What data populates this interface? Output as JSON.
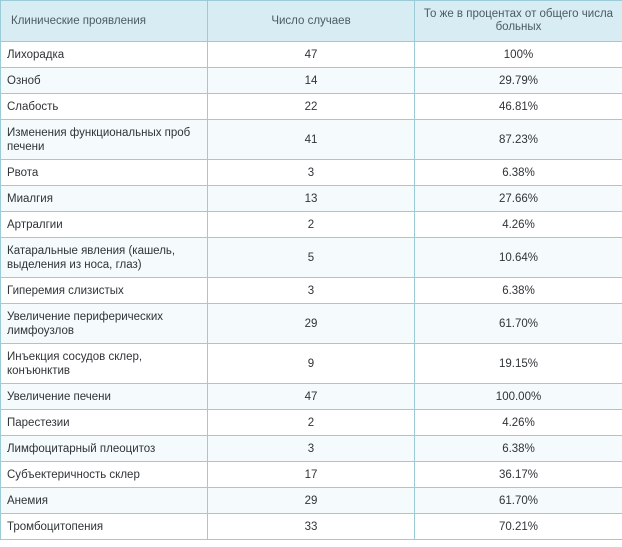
{
  "table": {
    "headers": [
      "Клинические проявления",
      "Число случаев",
      "То же в процентах от общего числа больных"
    ],
    "rows": [
      {
        "name": "Лихорадка",
        "count": "47",
        "percent": "100%"
      },
      {
        "name": "Озноб",
        "count": "14",
        "percent": "29.79%"
      },
      {
        "name": "Слабость",
        "count": "22",
        "percent": "46.81%"
      },
      {
        "name": "Изменения функциональных проб печени",
        "count": "41",
        "percent": "87.23%"
      },
      {
        "name": "Рвота",
        "count": "3",
        "percent": "6.38%"
      },
      {
        "name": "Миалгия",
        "count": "13",
        "percent": "27.66%"
      },
      {
        "name": "Артралгии",
        "count": "2",
        "percent": "4.26%"
      },
      {
        "name": "Катаральные явления (кашель, выделения из носа, глаз)",
        "count": "5",
        "percent": "10.64%"
      },
      {
        "name": "Гиперемия слизистых",
        "count": "3",
        "percent": "6.38%"
      },
      {
        "name": "Увеличение периферических лимфоузлов",
        "count": "29",
        "percent": "61.70%"
      },
      {
        "name": "Инъекция сосудов склер, конъюнктив",
        "count": "9",
        "percent": "19.15%"
      },
      {
        "name": "Увеличение печени",
        "count": "47",
        "percent": "100.00%"
      },
      {
        "name": "Парестезии",
        "count": "2",
        "percent": "4.26%"
      },
      {
        "name": "Лимфоцитарный плеоцитоз",
        "count": "3",
        "percent": "6.38%"
      },
      {
        "name": "Субъектеричность склер",
        "count": "17",
        "percent": "36.17%"
      },
      {
        "name": "Анемия",
        "count": "29",
        "percent": "61.70%"
      },
      {
        "name": "Тромбоцитопения",
        "count": "33",
        "percent": "70.21%"
      }
    ]
  }
}
